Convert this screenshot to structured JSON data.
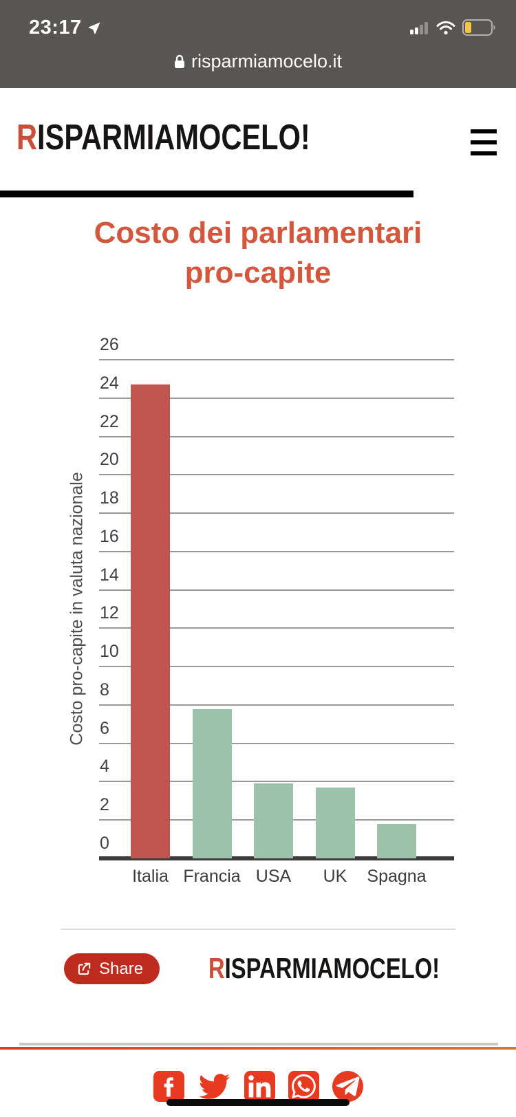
{
  "status_bar": {
    "time": "23:17",
    "url": "risparmiamocelo.it"
  },
  "header": {
    "logo_first": "R",
    "logo_rest": "ISPARMIAMOCELO!"
  },
  "page": {
    "title": "Costo dei parlamentari pro-capite"
  },
  "chart_data": {
    "type": "bar",
    "title": "Costo dei parlamentari pro-capite",
    "categories": [
      "Italia",
      "Francia",
      "USA",
      "UK",
      "Spagna"
    ],
    "values": [
      24.7,
      7.8,
      3.9,
      3.7,
      1.8
    ],
    "bar_colors": [
      "#c25450",
      "#9cc2aa",
      "#9cc2aa",
      "#9cc2aa",
      "#9cc2aa"
    ],
    "xlabel": "",
    "ylabel": "Costo pro-capite in valuta nazionale",
    "ylim": [
      0,
      26
    ],
    "ytick_step": 2,
    "grid": true,
    "legend": false
  },
  "share": {
    "label": "Share"
  },
  "footer": {
    "logo_first": "R",
    "logo_rest": "ISPARMIAMOCELO!"
  },
  "icons": {
    "status": [
      "location-arrow-icon",
      "cellular-signal-icon",
      "wifi-icon",
      "battery-low-icon",
      "lock-icon"
    ],
    "social": [
      "facebook",
      "twitter",
      "linkedin",
      "whatsapp",
      "telegram"
    ]
  },
  "colors": {
    "accent_orange": "#d2573c",
    "logo_red": "#ca4f36",
    "bar_red": "#c25450",
    "bar_green": "#9cc2aa",
    "share_red": "#bd2a1e",
    "social_red": "#e73a21",
    "statusbar_bg": "#585653",
    "battery_yellow": "#f0c645"
  }
}
